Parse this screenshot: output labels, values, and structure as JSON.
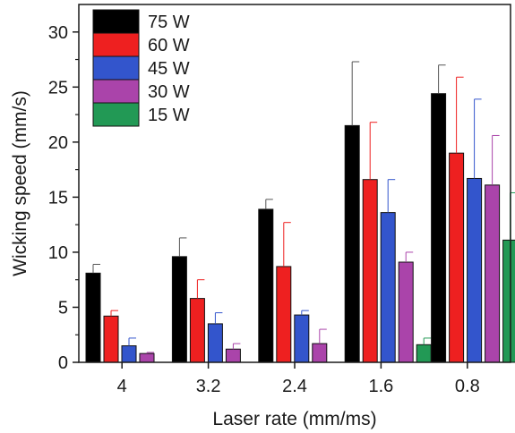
{
  "chart_data": {
    "type": "bar",
    "title": "",
    "xlabel": "Laser rate (mm/ms)",
    "ylabel": "Wicking speed (mm/s)",
    "categories": [
      "4",
      "3.2",
      "2.4",
      "1.6",
      "0.8"
    ],
    "ylim": [
      0,
      32.5
    ],
    "yticks": [
      0,
      5,
      10,
      15,
      20,
      25,
      30
    ],
    "grid": false,
    "legend_position": "top-left",
    "series": [
      {
        "name": "75 W",
        "color": "#000000",
        "values": [
          8.1,
          9.6,
          13.9,
          21.5,
          24.4
        ],
        "errors": [
          0.8,
          1.7,
          0.9,
          5.8,
          2.6
        ]
      },
      {
        "name": "60 W",
        "color": "#ee2020",
        "values": [
          4.2,
          5.8,
          8.7,
          16.6,
          19.0
        ],
        "errors": [
          0.5,
          1.7,
          4.0,
          5.2,
          6.9
        ]
      },
      {
        "name": "45 W",
        "color": "#3355cc",
        "values": [
          1.5,
          3.5,
          4.3,
          13.6,
          16.7
        ],
        "errors": [
          0.7,
          1.0,
          0.4,
          3.0,
          7.2
        ]
      },
      {
        "name": "30 W",
        "color": "#aa44aa",
        "values": [
          0.8,
          1.2,
          1.7,
          9.1,
          16.1
        ],
        "errors": [
          0.1,
          0.5,
          1.3,
          0.9,
          4.5
        ]
      },
      {
        "name": "15 W",
        "color": "#229955",
        "values": [
          0,
          0,
          0,
          1.6,
          11.1
        ],
        "errors": [
          0,
          0,
          0,
          0.6,
          4.3
        ]
      }
    ]
  }
}
